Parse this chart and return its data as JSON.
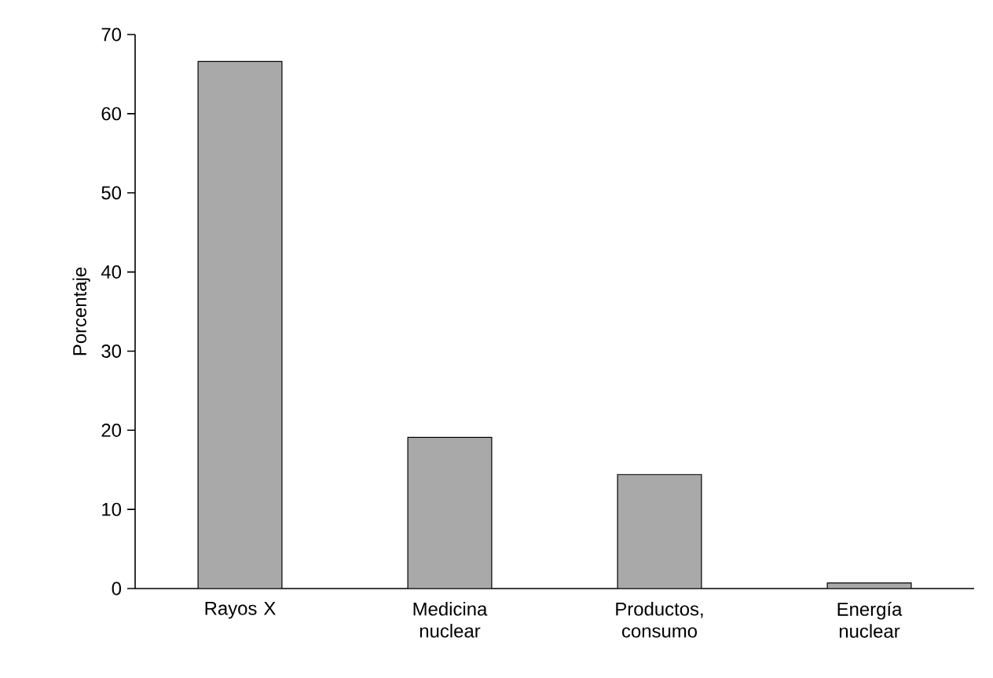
{
  "chart_data": {
    "type": "bar",
    "ylabel": "Porcentaje",
    "categories": [
      "Rayos X",
      "Medicina nuclear",
      "Productos, consumo",
      "Energía nuclear"
    ],
    "values": [
      66.6,
      19.1,
      14.4,
      0.7
    ],
    "color": "#a9a9a9",
    "ylim": [
      0,
      70
    ],
    "yticks": [
      0,
      10,
      20,
      30,
      40,
      50,
      60,
      70
    ],
    "grid": false
  }
}
